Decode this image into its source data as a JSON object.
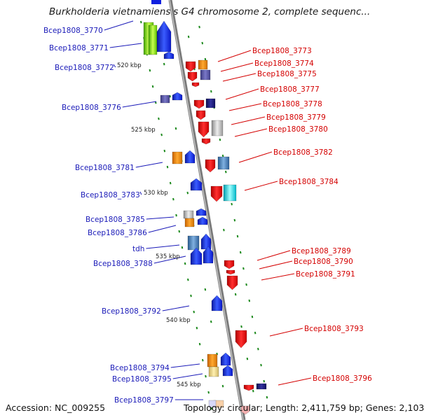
{
  "title": "Burkholderia vietnamiensis G4 chromosome 2, complete sequenc...",
  "footer": {
    "accession": "Accession: NC_009255",
    "summary": "Topology: circular; Length: 2,411,759 bp; Genes: 2,103"
  },
  "kbp_marks": [
    "520 kbp",
    "525 kbp",
    "530 kbp",
    "535 kbp",
    "540 kbp",
    "545 kbp"
  ],
  "left_genes": [
    "Bcep1808_3770",
    "Bcep1808_3771",
    "Bcep1808_3772",
    "Bcep1808_3776",
    "Bcep1808_3781",
    "Bcep1808_3783",
    "Bcep1808_3785",
    "Bcep1808_3786",
    "tdh",
    "Bcep1808_3788",
    "Bcep1808_3792",
    "Bcep1808_3794",
    "Bcep1808_3795",
    "Bcep1808_3797"
  ],
  "right_genes": [
    "Bcep1808_3773",
    "Bcep1808_3774",
    "Bcep1808_3775",
    "Bcep1808_3777",
    "Bcep1808_3778",
    "Bcep1808_3779",
    "Bcep1808_3780",
    "Bcep1808_3782",
    "Bcep1808_3784",
    "Bcep1808_3789",
    "Bcep1808_3790",
    "Bcep1808_3791",
    "Bcep1808_3793",
    "Bcep1808_3796"
  ],
  "colors": {
    "plus_strand": "#1020e0",
    "minus_strand": "#e80000",
    "left_label": "#1a1ab8",
    "right_label": "#d40000",
    "backbone": "#888888",
    "dash": "#1e8a1e"
  }
}
